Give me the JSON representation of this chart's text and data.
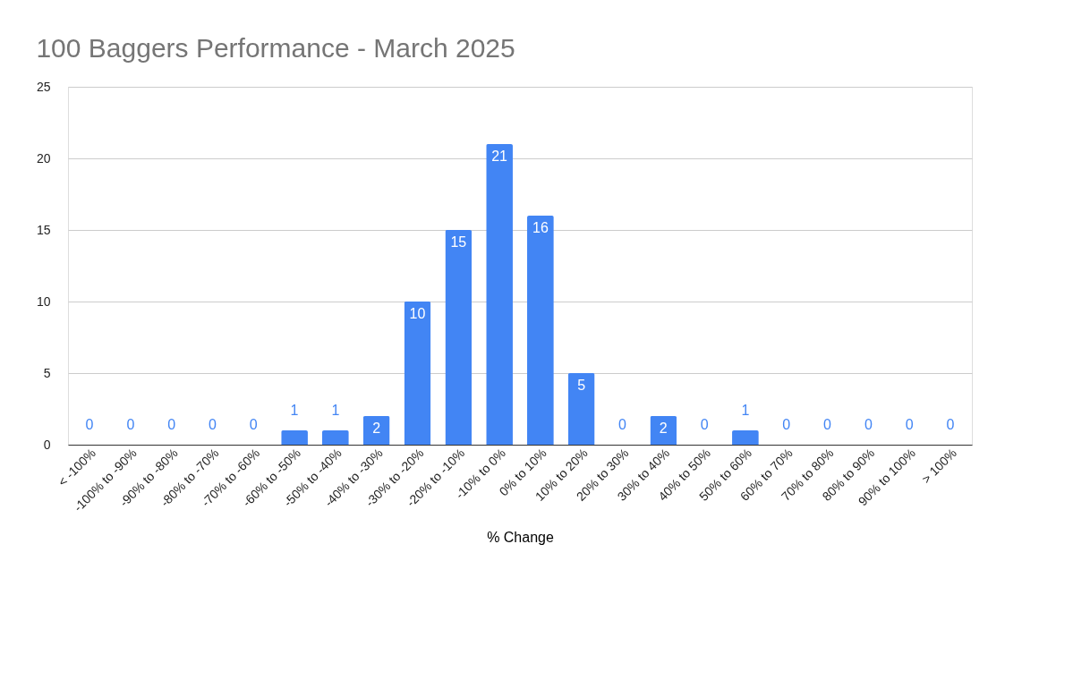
{
  "chart_data": {
    "type": "bar",
    "title": "100 Baggers Performance - March 2025",
    "xlabel": "% Change",
    "categories": [
      "< -100%",
      "-100% to -90%",
      "-90% to -80%",
      "-80% to -70%",
      "-70% to -60%",
      "-60% to -50%",
      "-50% to -40%",
      "-40% to -30%",
      "-30% to -20%",
      "-20% to -10%",
      "-10% to 0%",
      "0% to 10%",
      "10% to 20%",
      "20% to 30%",
      "30% to 40%",
      "40% to 50%",
      "50% to 60%",
      "60% to 70%",
      "70% to 80%",
      "80% to 90%",
      "90% to 100%",
      "> 100%"
    ],
    "values": [
      0,
      0,
      0,
      0,
      0,
      1,
      1,
      2,
      10,
      15,
      21,
      16,
      5,
      0,
      2,
      0,
      1,
      0,
      0,
      0,
      0,
      0
    ],
    "color": "#4285f4",
    "ylim": [
      0,
      25
    ],
    "yticks": [
      0,
      5,
      10,
      15,
      20,
      25
    ],
    "grid": "y",
    "data_labels": true
  }
}
